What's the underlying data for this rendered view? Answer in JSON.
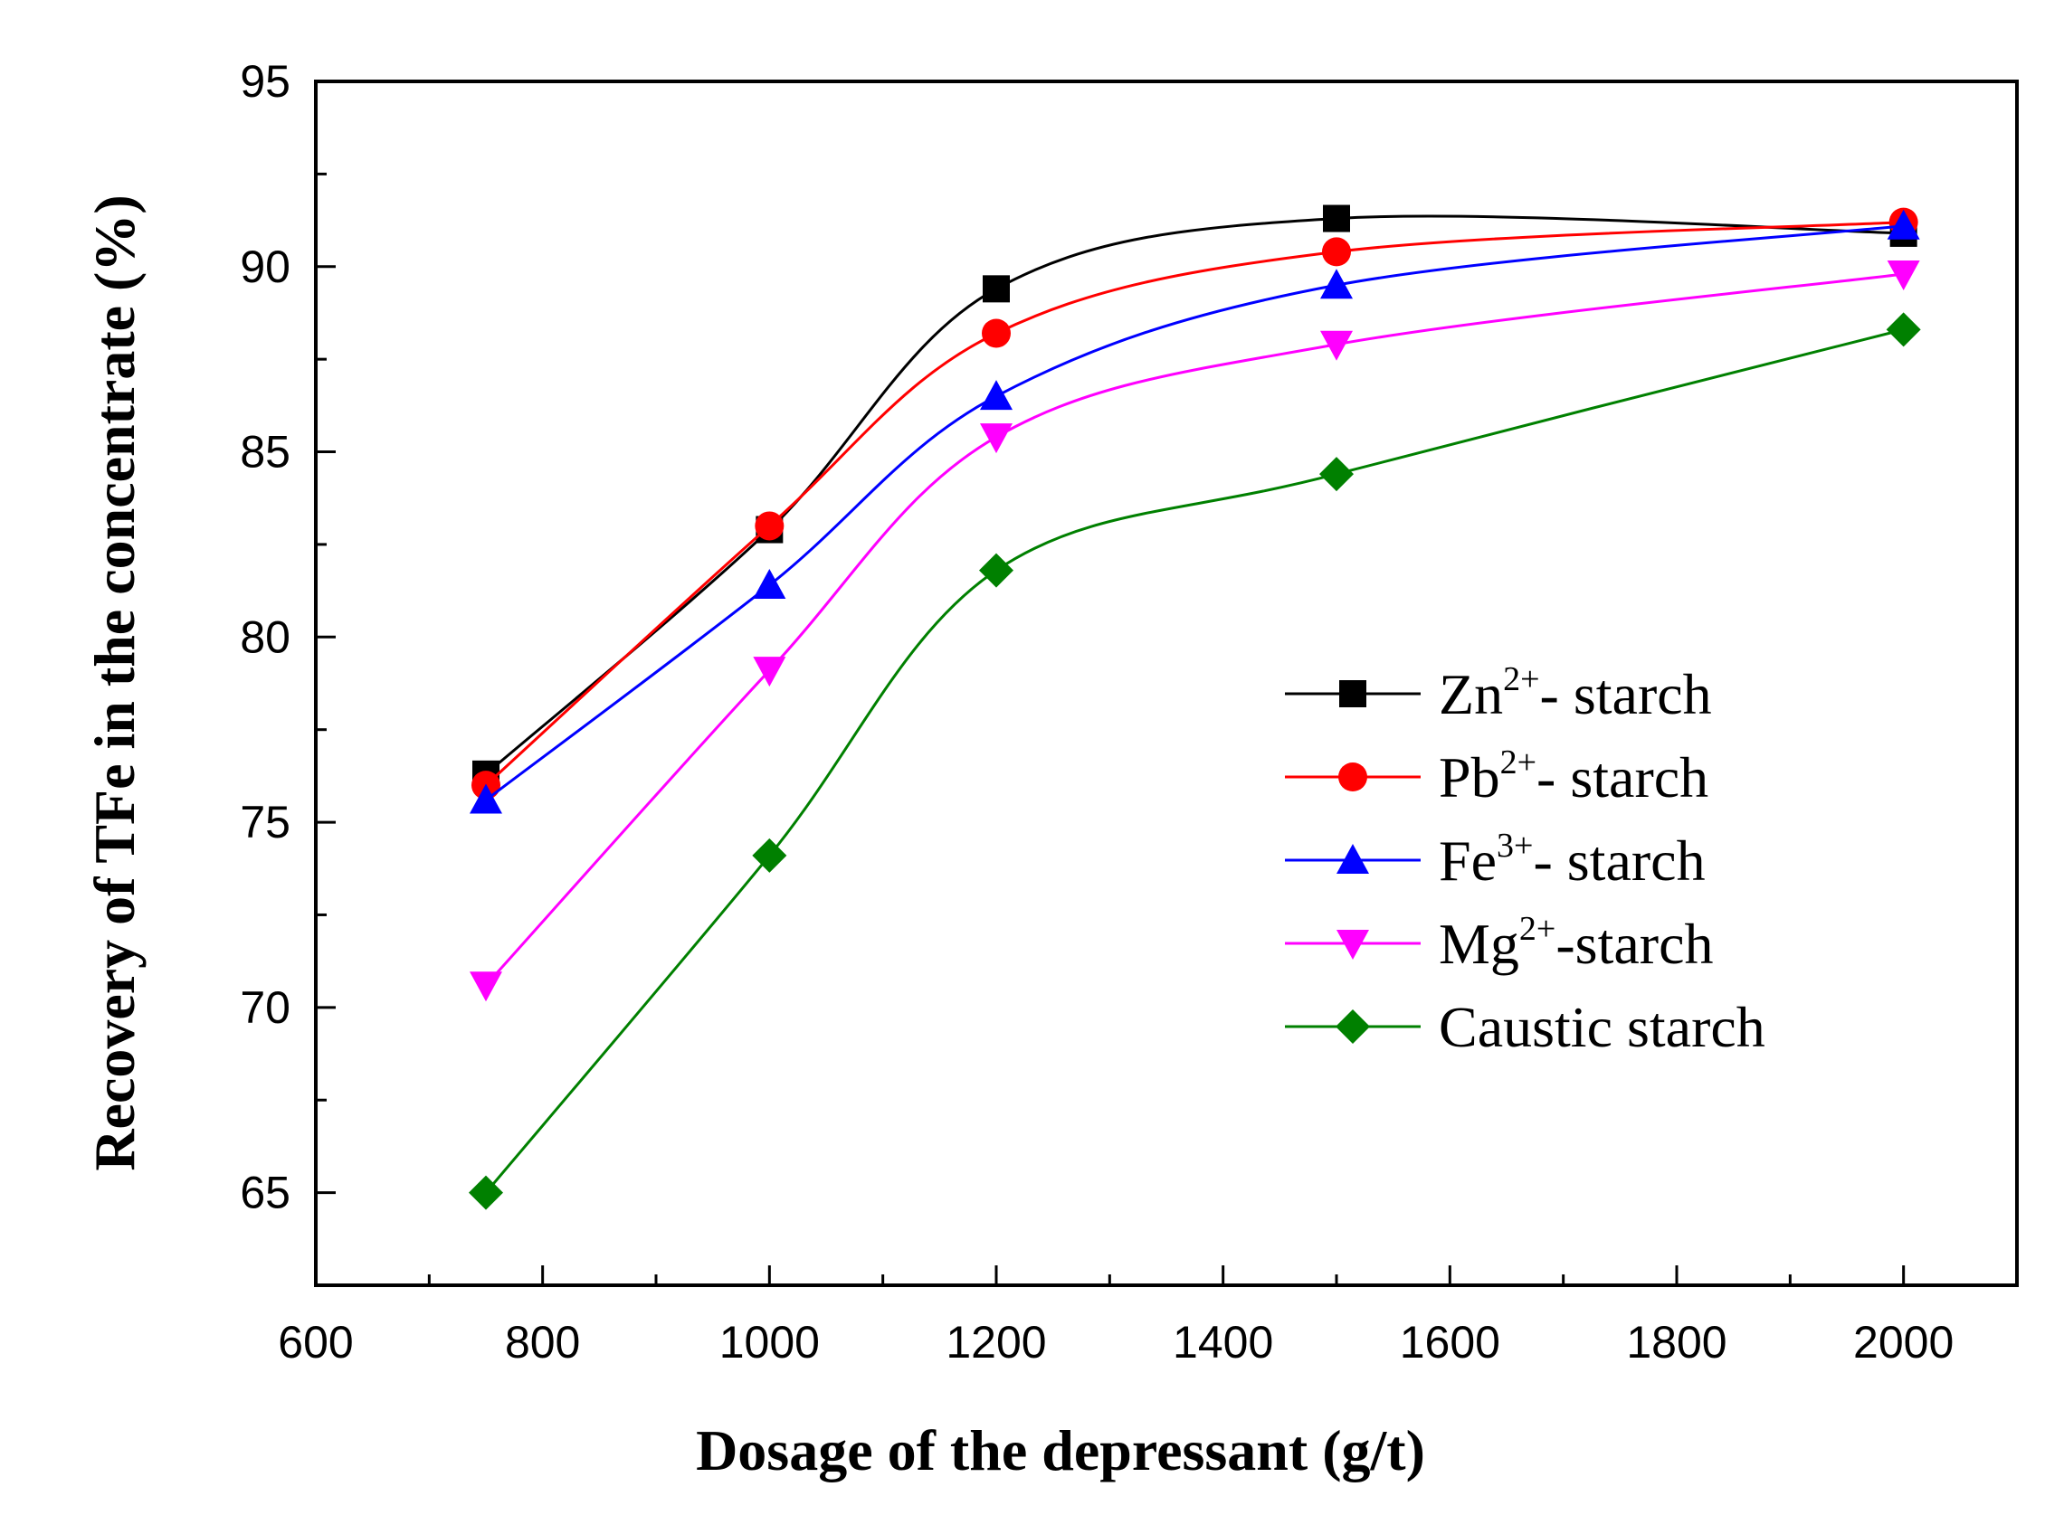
{
  "chart_data": {
    "type": "line",
    "xlabel": "Dosage of the depressant (g/t)",
    "ylabel": "Recovery of TFe  in the concentrate (%)",
    "xlim": [
      600,
      2100
    ],
    "ylim": [
      62.5,
      95
    ],
    "x_ticks": [
      600,
      800,
      1000,
      1200,
      1400,
      1600,
      1800,
      2000
    ],
    "y_ticks": [
      65,
      70,
      75,
      80,
      85,
      90,
      95
    ],
    "x": [
      750,
      1000,
      1200,
      1500,
      2000
    ],
    "legend_position": "center-right",
    "series": [
      {
        "name": "Zn2+- starch",
        "legend_base": "Zn",
        "legend_sup": "2+",
        "legend_tail": "- starch",
        "color": "#000000",
        "marker": "square",
        "values": [
          76.3,
          82.9,
          89.4,
          91.3,
          90.9
        ]
      },
      {
        "name": "Pb2+- starch",
        "legend_base": "Pb",
        "legend_sup": "2+",
        "legend_tail": "- starch",
        "color": "#ff0000",
        "marker": "circle",
        "values": [
          76.0,
          83.0,
          88.2,
          90.4,
          91.2
        ]
      },
      {
        "name": "Fe3+- starch",
        "legend_base": "Fe",
        "legend_sup": "3+",
        "legend_tail": "- starch",
        "color": "#0000ff",
        "marker": "triangle-up",
        "values": [
          75.6,
          81.4,
          86.5,
          89.5,
          91.1
        ]
      },
      {
        "name": "Mg2+-starch",
        "legend_base": "Mg",
        "legend_sup": "2+",
        "legend_tail": "-starch",
        "color": "#ff00ff",
        "marker": "triangle-down",
        "values": [
          70.6,
          79.1,
          85.4,
          87.9,
          89.8
        ]
      },
      {
        "name": "Caustic starch",
        "legend_base": "Caustic starch",
        "legend_sup": "",
        "legend_tail": "",
        "color": "#008000",
        "marker": "diamond",
        "values": [
          65.0,
          74.1,
          81.8,
          84.4,
          88.3
        ]
      }
    ]
  }
}
